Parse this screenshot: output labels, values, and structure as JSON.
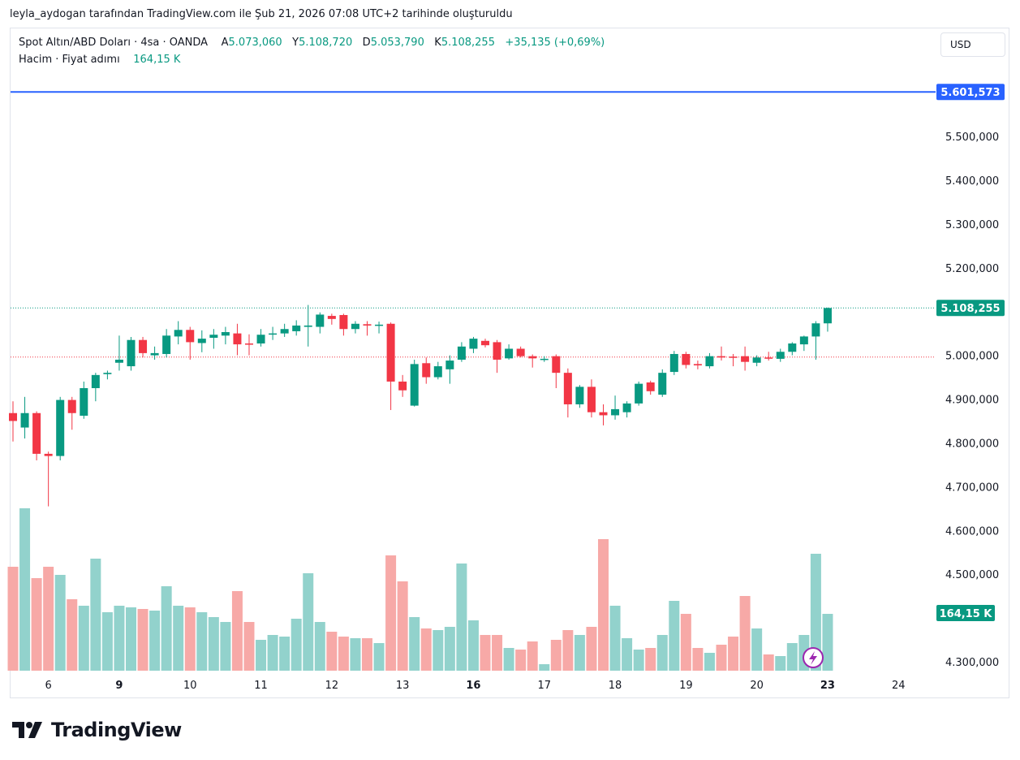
{
  "header": {
    "note": "leyla_aydogan tarafından TradingView.com ile Şub 21, 2026 07:08 UTC+2 tarihinde oluşturuldu"
  },
  "legend": {
    "symbol": "Spot Altın/ABD Doları · 4sa · OANDA",
    "open_label": "A",
    "open": "5.073,060",
    "high_label": "Y",
    "high": "5.108,720",
    "low_label": "D",
    "low": "5.053,790",
    "close_label": "K",
    "close": "5.108,255",
    "change": "+35,135 (+0,69%)",
    "volume_label": "Hacim · Fiyat adımı",
    "volume_value": "164,15 K"
  },
  "currency": "USD",
  "logo_text": "TradingView",
  "colors": {
    "up": "#089981",
    "down": "#f23645",
    "vol_up": "#92d2cc",
    "vol_down": "#f7a9a7",
    "line": "#2962ff"
  },
  "chart_data": {
    "type": "candlestick",
    "symbol": "Spot Altın/ABD Doları",
    "interval": "4sa",
    "y_range": [
      4270000,
      5660000
    ],
    "y_ticks": [
      {
        "value": 5500000,
        "label": "5.500,000"
      },
      {
        "value": 5400000,
        "label": "5.400,000"
      },
      {
        "value": 5300000,
        "label": "5.300,000"
      },
      {
        "value": 5200000,
        "label": "5.200,000"
      },
      {
        "value": 5000000,
        "label": "5.000,000"
      },
      {
        "value": 4900000,
        "label": "4.900,000"
      },
      {
        "value": 4800000,
        "label": "4.800,000"
      },
      {
        "value": 4700000,
        "label": "4.700,000"
      },
      {
        "value": 4600000,
        "label": "4.600,000"
      },
      {
        "value": 4500000,
        "label": "4.500,000"
      },
      {
        "value": 4300000,
        "label": "4.300,000"
      }
    ],
    "price_lines": [
      {
        "value": 5601573,
        "label": "5.601,573",
        "style": "solid",
        "color": "#2962ff"
      },
      {
        "value": 5108255,
        "label": "5.108,255",
        "style": "dotted",
        "color": "#089981"
      },
      {
        "value": 4996000,
        "label": "",
        "style": "dotted",
        "color": "#f23645"
      }
    ],
    "volume_label": "164,15 K",
    "x_labels": [
      {
        "label": "6",
        "bar": 3,
        "bold": false
      },
      {
        "label": "9",
        "bar": 9,
        "bold": true
      },
      {
        "label": "10",
        "bar": 15,
        "bold": false
      },
      {
        "label": "11",
        "bar": 21,
        "bold": false
      },
      {
        "label": "12",
        "bar": 27,
        "bold": false
      },
      {
        "label": "13",
        "bar": 33,
        "bold": false
      },
      {
        "label": "16",
        "bar": 39,
        "bold": true
      },
      {
        "label": "17",
        "bar": 45,
        "bold": false
      },
      {
        "label": "18",
        "bar": 51,
        "bold": false
      },
      {
        "label": "19",
        "bar": 57,
        "bold": false
      },
      {
        "label": "20",
        "bar": 63,
        "bold": false
      },
      {
        "label": "23",
        "bar": 69,
        "bold": true
      },
      {
        "label": "24",
        "bar": 75,
        "bold": false
      }
    ],
    "bars": [
      {
        "o": 4868,
        "h": 4895,
        "l": 4803,
        "c": 4850,
        "v": 0.64
      },
      {
        "o": 4835,
        "h": 4905,
        "l": 4810,
        "c": 4868,
        "v": 1.0
      },
      {
        "o": 4868,
        "h": 4872,
        "l": 4760,
        "c": 4775,
        "v": 0.57
      },
      {
        "o": 4775,
        "h": 4780,
        "l": 4655,
        "c": 4770,
        "v": 0.64
      },
      {
        "o": 4770,
        "h": 4905,
        "l": 4760,
        "c": 4898,
        "v": 0.59
      },
      {
        "o": 4898,
        "h": 4905,
        "l": 4830,
        "c": 4868,
        "v": 0.44
      },
      {
        "o": 4862,
        "h": 4940,
        "l": 4855,
        "c": 4925,
        "v": 0.4
      },
      {
        "o": 4925,
        "h": 4960,
        "l": 4895,
        "c": 4955,
        "v": 0.69
      },
      {
        "o": 4957,
        "h": 4965,
        "l": 4945,
        "c": 4960,
        "v": 0.36
      },
      {
        "o": 4983,
        "h": 5045,
        "l": 4965,
        "c": 4990,
        "v": 0.4
      },
      {
        "o": 4975,
        "h": 5042,
        "l": 4965,
        "c": 5035,
        "v": 0.39
      },
      {
        "o": 5035,
        "h": 5042,
        "l": 4995,
        "c": 5005,
        "v": 0.38
      },
      {
        "o": 5000,
        "h": 5020,
        "l": 4990,
        "c": 5005,
        "v": 0.37
      },
      {
        "o": 5003,
        "h": 5060,
        "l": 4995,
        "c": 5045,
        "v": 0.52
      },
      {
        "o": 5043,
        "h": 5078,
        "l": 5025,
        "c": 5058,
        "v": 0.4
      },
      {
        "o": 5058,
        "h": 5065,
        "l": 4990,
        "c": 5030,
        "v": 0.39
      },
      {
        "o": 5028,
        "h": 5057,
        "l": 5007,
        "c": 5038,
        "v": 0.36
      },
      {
        "o": 5040,
        "h": 5060,
        "l": 5015,
        "c": 5047,
        "v": 0.33
      },
      {
        "o": 5045,
        "h": 5065,
        "l": 5025,
        "c": 5053,
        "v": 0.3
      },
      {
        "o": 5050,
        "h": 5072,
        "l": 5000,
        "c": 5025,
        "v": 0.49
      },
      {
        "o": 5027,
        "h": 5048,
        "l": 5000,
        "c": 5025,
        "v": 0.3
      },
      {
        "o": 5027,
        "h": 5060,
        "l": 5020,
        "c": 5047,
        "v": 0.19
      },
      {
        "o": 5050,
        "h": 5065,
        "l": 5035,
        "c": 5050,
        "v": 0.22
      },
      {
        "o": 5050,
        "h": 5072,
        "l": 5042,
        "c": 5060,
        "v": 0.21
      },
      {
        "o": 5055,
        "h": 5080,
        "l": 5045,
        "c": 5068,
        "v": 0.32
      },
      {
        "o": 5065,
        "h": 5115,
        "l": 5020,
        "c": 5068,
        "v": 0.6
      },
      {
        "o": 5065,
        "h": 5098,
        "l": 5050,
        "c": 5093,
        "v": 0.3
      },
      {
        "o": 5090,
        "h": 5095,
        "l": 5070,
        "c": 5083,
        "v": 0.24
      },
      {
        "o": 5092,
        "h": 5095,
        "l": 5045,
        "c": 5060,
        "v": 0.21
      },
      {
        "o": 5060,
        "h": 5078,
        "l": 5050,
        "c": 5072,
        "v": 0.2
      },
      {
        "o": 5071,
        "h": 5078,
        "l": 5045,
        "c": 5068,
        "v": 0.2
      },
      {
        "o": 5069,
        "h": 5077,
        "l": 5050,
        "c": 5070,
        "v": 0.17
      },
      {
        "o": 5072,
        "h": 5075,
        "l": 4875,
        "c": 4940,
        "v": 0.71
      },
      {
        "o": 4940,
        "h": 4955,
        "l": 4905,
        "c": 4920,
        "v": 0.55
      },
      {
        "o": 4885,
        "h": 4990,
        "l": 4883,
        "c": 4980,
        "v": 0.33
      },
      {
        "o": 4982,
        "h": 4995,
        "l": 4935,
        "c": 4950,
        "v": 0.26
      },
      {
        "o": 4950,
        "h": 4985,
        "l": 4945,
        "c": 4975,
        "v": 0.25
      },
      {
        "o": 4968,
        "h": 5000,
        "l": 4935,
        "c": 4988,
        "v": 0.27
      },
      {
        "o": 4990,
        "h": 5030,
        "l": 4985,
        "c": 5020,
        "v": 0.66
      },
      {
        "o": 5015,
        "h": 5042,
        "l": 5005,
        "c": 5038,
        "v": 0.31
      },
      {
        "o": 5033,
        "h": 5038,
        "l": 5018,
        "c": 5023,
        "v": 0.22
      },
      {
        "o": 5030,
        "h": 5035,
        "l": 4960,
        "c": 4990,
        "v": 0.22
      },
      {
        "o": 4993,
        "h": 5025,
        "l": 4990,
        "c": 5015,
        "v": 0.14
      },
      {
        "o": 5015,
        "h": 5020,
        "l": 4995,
        "c": 4998,
        "v": 0.13
      },
      {
        "o": 4998,
        "h": 5002,
        "l": 4972,
        "c": 4993,
        "v": 0.18
      },
      {
        "o": 4990,
        "h": 4998,
        "l": 4985,
        "c": 4992,
        "v": 0.04
      },
      {
        "o": 4998,
        "h": 5002,
        "l": 4925,
        "c": 4960,
        "v": 0.19
      },
      {
        "o": 4960,
        "h": 4970,
        "l": 4858,
        "c": 4888,
        "v": 0.25
      },
      {
        "o": 4888,
        "h": 4932,
        "l": 4880,
        "c": 4928,
        "v": 0.22
      },
      {
        "o": 4928,
        "h": 4945,
        "l": 4858,
        "c": 4870,
        "v": 0.27
      },
      {
        "o": 4870,
        "h": 4888,
        "l": 4840,
        "c": 4863,
        "v": 0.81
      },
      {
        "o": 4863,
        "h": 4908,
        "l": 4853,
        "c": 4877,
        "v": 0.4
      },
      {
        "o": 4870,
        "h": 4895,
        "l": 4858,
        "c": 4890,
        "v": 0.2
      },
      {
        "o": 4890,
        "h": 4940,
        "l": 4885,
        "c": 4935,
        "v": 0.13
      },
      {
        "o": 4938,
        "h": 4942,
        "l": 4910,
        "c": 4918,
        "v": 0.14
      },
      {
        "o": 4910,
        "h": 4968,
        "l": 4905,
        "c": 4960,
        "v": 0.22
      },
      {
        "o": 4962,
        "h": 5010,
        "l": 4955,
        "c": 5003,
        "v": 0.43
      },
      {
        "o": 5003,
        "h": 5008,
        "l": 4970,
        "c": 4978,
        "v": 0.35
      },
      {
        "o": 4980,
        "h": 4988,
        "l": 4968,
        "c": 4977,
        "v": 0.14
      },
      {
        "o": 4975,
        "h": 5005,
        "l": 4970,
        "c": 4998,
        "v": 0.11
      },
      {
        "o": 4998,
        "h": 5020,
        "l": 4988,
        "c": 4995,
        "v": 0.16
      },
      {
        "o": 4997,
        "h": 5003,
        "l": 4975,
        "c": 4995,
        "v": 0.21
      },
      {
        "o": 4998,
        "h": 5020,
        "l": 4965,
        "c": 4985,
        "v": 0.46
      },
      {
        "o": 4983,
        "h": 5000,
        "l": 4975,
        "c": 4995,
        "v": 0.26
      },
      {
        "o": 4995,
        "h": 5008,
        "l": 4988,
        "c": 4993,
        "v": 0.1
      },
      {
        "o": 4992,
        "h": 5015,
        "l": 4985,
        "c": 5008,
        "v": 0.09
      },
      {
        "o": 5008,
        "h": 5030,
        "l": 5000,
        "c": 5027,
        "v": 0.17
      },
      {
        "o": 5025,
        "h": 5045,
        "l": 5010,
        "c": 5043,
        "v": 0.22
      },
      {
        "o": 5043,
        "h": 5078,
        "l": 4990,
        "c": 5073,
        "v": 0.72
      },
      {
        "o": 5073,
        "h": 5109,
        "l": 5054,
        "c": 5108,
        "v": 0.35
      }
    ]
  }
}
